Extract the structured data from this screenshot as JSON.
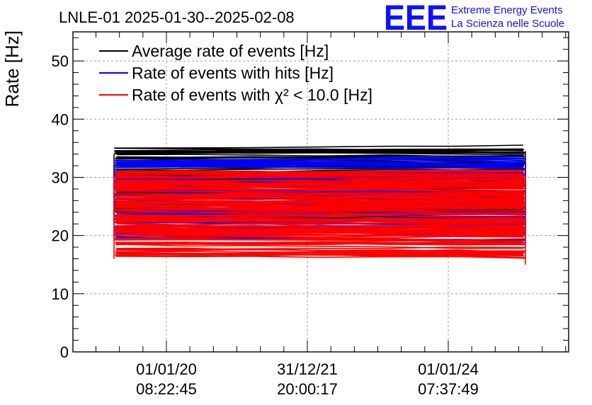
{
  "header": {
    "title": "LNLE-01 2025-01-30--2025-02-08",
    "logo": "EEE",
    "logo_line1": "Extreme Energy Events",
    "logo_line2": "La Scienza nelle Scuole"
  },
  "chart_data": {
    "type": "line",
    "title": "LNLE-01 2025-01-30--2025-02-08",
    "xlabel": "",
    "ylabel": "Rate [Hz]",
    "ylim": [
      0,
      55
    ],
    "yticks": [
      0,
      10,
      20,
      30,
      40,
      50
    ],
    "xticks": [
      {
        "line1": "01/01/20",
        "line2": "08:22:45"
      },
      {
        "line1": "31/12/21",
        "line2": "20:00:17"
      },
      {
        "line1": "01/01/24",
        "line2": "07:37:49"
      }
    ],
    "grid": true,
    "legend_position": "top-left",
    "series": [
      {
        "name": "Average rate of events [Hz]",
        "color": "#000000",
        "band": [
          22.5,
          35.0
        ]
      },
      {
        "name": "Rate of events with hits [Hz]",
        "color": "#0000ff",
        "band": [
          19.5,
          33.0
        ]
      },
      {
        "name": "Rate of events with χ² < 10.0 [Hz]",
        "color": "#ff0000",
        "band": [
          16.0,
          31.0
        ]
      }
    ]
  }
}
